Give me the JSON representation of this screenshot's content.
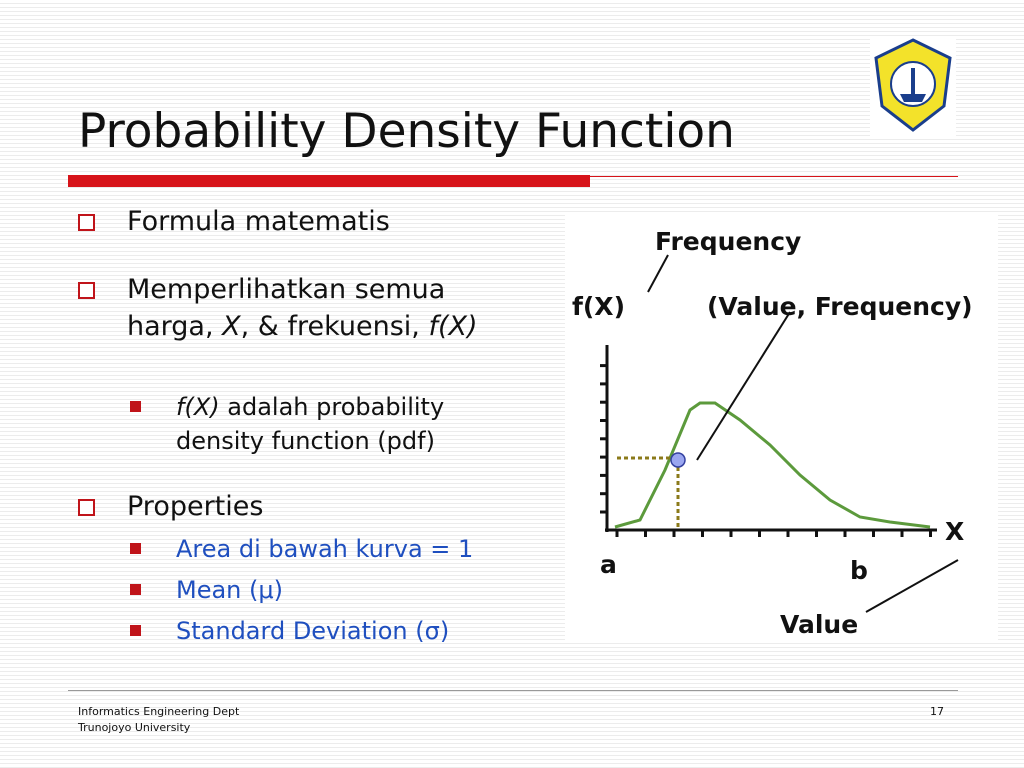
{
  "title": "Probability Density Function",
  "bullets": [
    {
      "text": "Formula matematis"
    },
    {
      "parts": [
        "Memperlihatkan semua harga, ",
        "X",
        ", & frekuensi, ",
        "f(X)"
      ],
      "sub": [
        {
          "parts": [
            "f(X)",
            " adalah probability density function (pdf)"
          ]
        }
      ]
    },
    {
      "text": "Properties",
      "sub": [
        {
          "text": "Area di bawah kurva = 1"
        },
        {
          "text": "Mean (μ)"
        },
        {
          "text": "Standard Deviation (σ)"
        }
      ]
    }
  ],
  "figure": {
    "frequency_label": "Frequency",
    "fx_label": "f(X)",
    "point_label": "(Value, Frequency)",
    "x_label": "X",
    "a_label": "a",
    "b_label": "b",
    "value_label": "Value"
  },
  "footer": {
    "dept": "Informatics Engineering Dept",
    "university": "Trunojoyo University",
    "page": 17
  }
}
